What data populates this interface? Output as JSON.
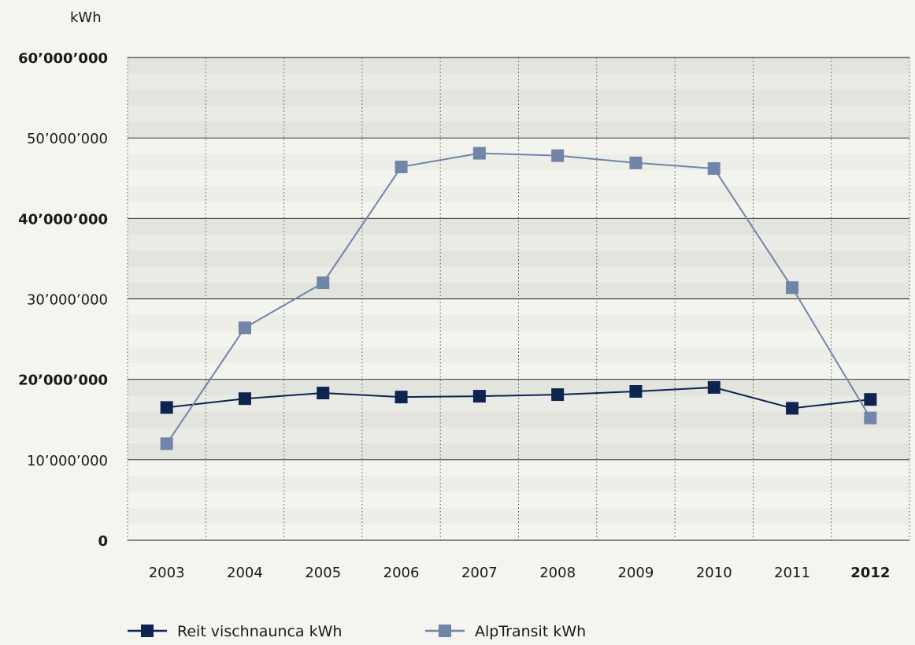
{
  "chart_data": {
    "type": "line",
    "ylabel": "kWh",
    "ylim": [
      0,
      60000000
    ],
    "y_ticks": [
      {
        "value": 0,
        "label": "0",
        "bold": true
      },
      {
        "value": 10000000,
        "label": "10’000’000",
        "bold": false
      },
      {
        "value": 20000000,
        "label": "20’000’000",
        "bold": true
      },
      {
        "value": 30000000,
        "label": "30’000’000",
        "bold": false
      },
      {
        "value": 40000000,
        "label": "40’000’000",
        "bold": true
      },
      {
        "value": 50000000,
        "label": "50’000’000",
        "bold": false
      },
      {
        "value": 60000000,
        "label": "60’000’000",
        "bold": true
      }
    ],
    "categories": [
      "2003",
      "2004",
      "2005",
      "2006",
      "2007",
      "2008",
      "2009",
      "2010",
      "2011",
      "2012"
    ],
    "bold_categories": [
      "2012"
    ],
    "grid": true,
    "legend_position": "bottom",
    "series": [
      {
        "name": "Reit vischnaunca kWh",
        "color": "#0d2350",
        "values": [
          16500000,
          17600000,
          18300000,
          17800000,
          17900000,
          18100000,
          18500000,
          19000000,
          16400000,
          17500000
        ]
      },
      {
        "name": "AlpTransit kWh",
        "color": "#7085a8",
        "values": [
          12000000,
          26400000,
          32000000,
          46400000,
          48100000,
          47800000,
          46900000,
          46200000,
          31400000,
          15200000
        ]
      }
    ]
  }
}
